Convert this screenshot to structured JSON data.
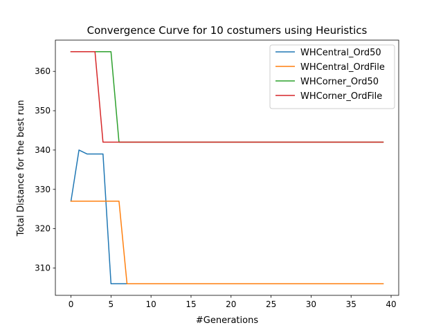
{
  "chart_data": {
    "type": "line",
    "title": "Convergence Curve for 10 costumers using Heuristics",
    "xlabel": "#Generations",
    "ylabel": "Total Distance for the best run",
    "xlim": [
      -1.95,
      40.95
    ],
    "ylim": [
      303.05,
      367.95
    ],
    "xticks": [
      0,
      5,
      10,
      15,
      20,
      25,
      30,
      35,
      40
    ],
    "yticks": [
      310,
      320,
      330,
      340,
      350,
      360
    ],
    "grid": false,
    "legend_position": "top-right",
    "x": [
      0,
      1,
      2,
      3,
      4,
      5,
      6,
      7,
      8,
      9,
      10,
      11,
      12,
      13,
      14,
      15,
      16,
      17,
      18,
      19,
      20,
      21,
      22,
      23,
      24,
      25,
      26,
      27,
      28,
      29,
      30,
      31,
      32,
      33,
      34,
      35,
      36,
      37,
      38,
      39
    ],
    "series": [
      {
        "name": "WHCentral_Ord50",
        "color": "#1f77b4",
        "values": [
          327,
          340,
          339,
          339,
          339,
          306,
          306,
          306,
          306,
          306,
          306,
          306,
          306,
          306,
          306,
          306,
          306,
          306,
          306,
          306,
          306,
          306,
          306,
          306,
          306,
          306,
          306,
          306,
          306,
          306,
          306,
          306,
          306,
          306,
          306,
          306,
          306,
          306,
          306,
          306
        ]
      },
      {
        "name": "WHCentral_OrdFile",
        "color": "#ff7f0e",
        "values": [
          327,
          327,
          327,
          327,
          327,
          327,
          327,
          306,
          306,
          306,
          306,
          306,
          306,
          306,
          306,
          306,
          306,
          306,
          306,
          306,
          306,
          306,
          306,
          306,
          306,
          306,
          306,
          306,
          306,
          306,
          306,
          306,
          306,
          306,
          306,
          306,
          306,
          306,
          306,
          306
        ]
      },
      {
        "name": "WHCorner_Ord50",
        "color": "#2ca02c",
        "values": [
          365,
          365,
          365,
          365,
          365,
          365,
          342,
          342,
          342,
          342,
          342,
          342,
          342,
          342,
          342,
          342,
          342,
          342,
          342,
          342,
          342,
          342,
          342,
          342,
          342,
          342,
          342,
          342,
          342,
          342,
          342,
          342,
          342,
          342,
          342,
          342,
          342,
          342,
          342,
          342
        ]
      },
      {
        "name": "WHCorner_OrdFile",
        "color": "#d62728",
        "values": [
          365,
          365,
          365,
          365,
          342,
          342,
          342,
          342,
          342,
          342,
          342,
          342,
          342,
          342,
          342,
          342,
          342,
          342,
          342,
          342,
          342,
          342,
          342,
          342,
          342,
          342,
          342,
          342,
          342,
          342,
          342,
          342,
          342,
          342,
          342,
          342,
          342,
          342,
          342,
          342
        ]
      }
    ]
  }
}
